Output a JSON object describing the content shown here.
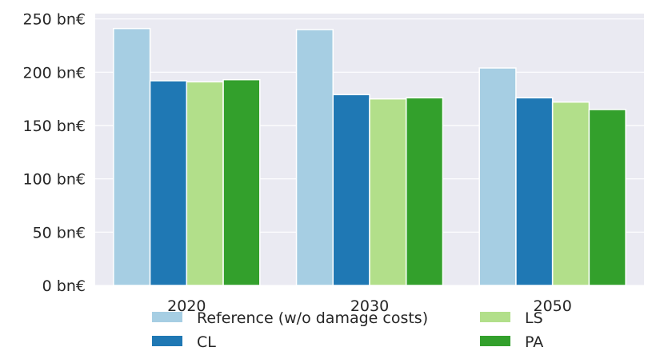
{
  "chart_data": {
    "type": "bar",
    "categories": [
      "2020",
      "2030",
      "2050"
    ],
    "series": [
      {
        "name": "Reference (w/o damage costs)",
        "color": "#a6cee3",
        "values": [
          241,
          240,
          204
        ]
      },
      {
        "name": "CL",
        "color": "#1f78b4",
        "values": [
          192,
          179,
          176
        ]
      },
      {
        "name": "LS",
        "color": "#b2df8a",
        "values": [
          191,
          175,
          172
        ]
      },
      {
        "name": "PA",
        "color": "#33a02c",
        "values": [
          193,
          176,
          165
        ]
      }
    ],
    "y_ticks": [
      0,
      50,
      100,
      150,
      200,
      250
    ],
    "y_tick_suffix": " bn€",
    "ylim": [
      0,
      255
    ],
    "grid": true,
    "legend_position": "bottom",
    "colors": {
      "background": "#eaeaf2",
      "grid": "#ffffff",
      "text": "#262626"
    }
  }
}
